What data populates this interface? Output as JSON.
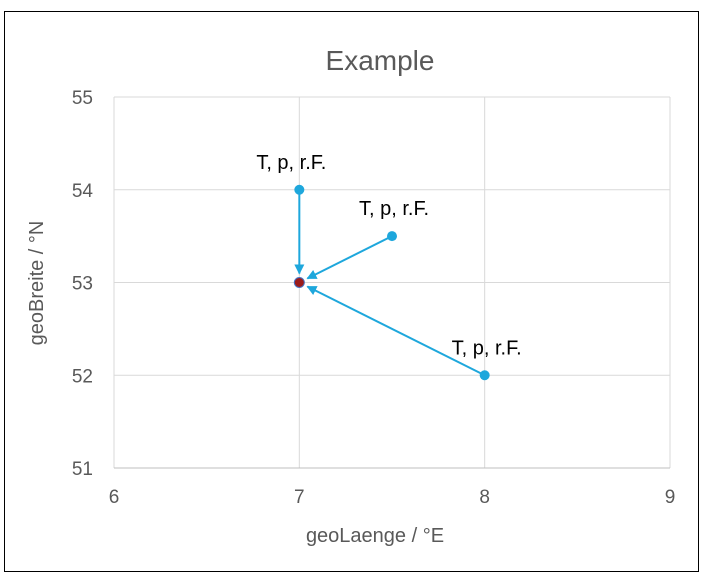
{
  "chart_data": {
    "type": "scatter",
    "title": "Example",
    "xlabel": "geoLaenge / °E",
    "ylabel": "geoBreite / °N",
    "xlim": [
      6,
      9
    ],
    "ylim": [
      51,
      55
    ],
    "xticks": [
      "6",
      "7",
      "8",
      "9"
    ],
    "yticks": [
      "51",
      "52",
      "53",
      "54",
      "55"
    ],
    "grid": true,
    "source_points": [
      {
        "x": 7,
        "y": 54,
        "label": "T, p, r.F."
      },
      {
        "x": 7.5,
        "y": 53.5,
        "label": "T, p, r.F."
      },
      {
        "x": 8,
        "y": 52,
        "label": "T, p, r.F."
      }
    ],
    "target_point": {
      "x": 7,
      "y": 53
    },
    "arrows": [
      {
        "from": [
          7,
          54
        ],
        "to": [
          7,
          53
        ]
      },
      {
        "from": [
          7.5,
          53.5
        ],
        "to": [
          7,
          53
        ]
      },
      {
        "from": [
          8,
          52
        ],
        "to": [
          7,
          53
        ]
      }
    ],
    "colors": {
      "series": "#1ea7dc",
      "target_fill": "#9b1c1c",
      "target_stroke": "#4472c4"
    }
  }
}
